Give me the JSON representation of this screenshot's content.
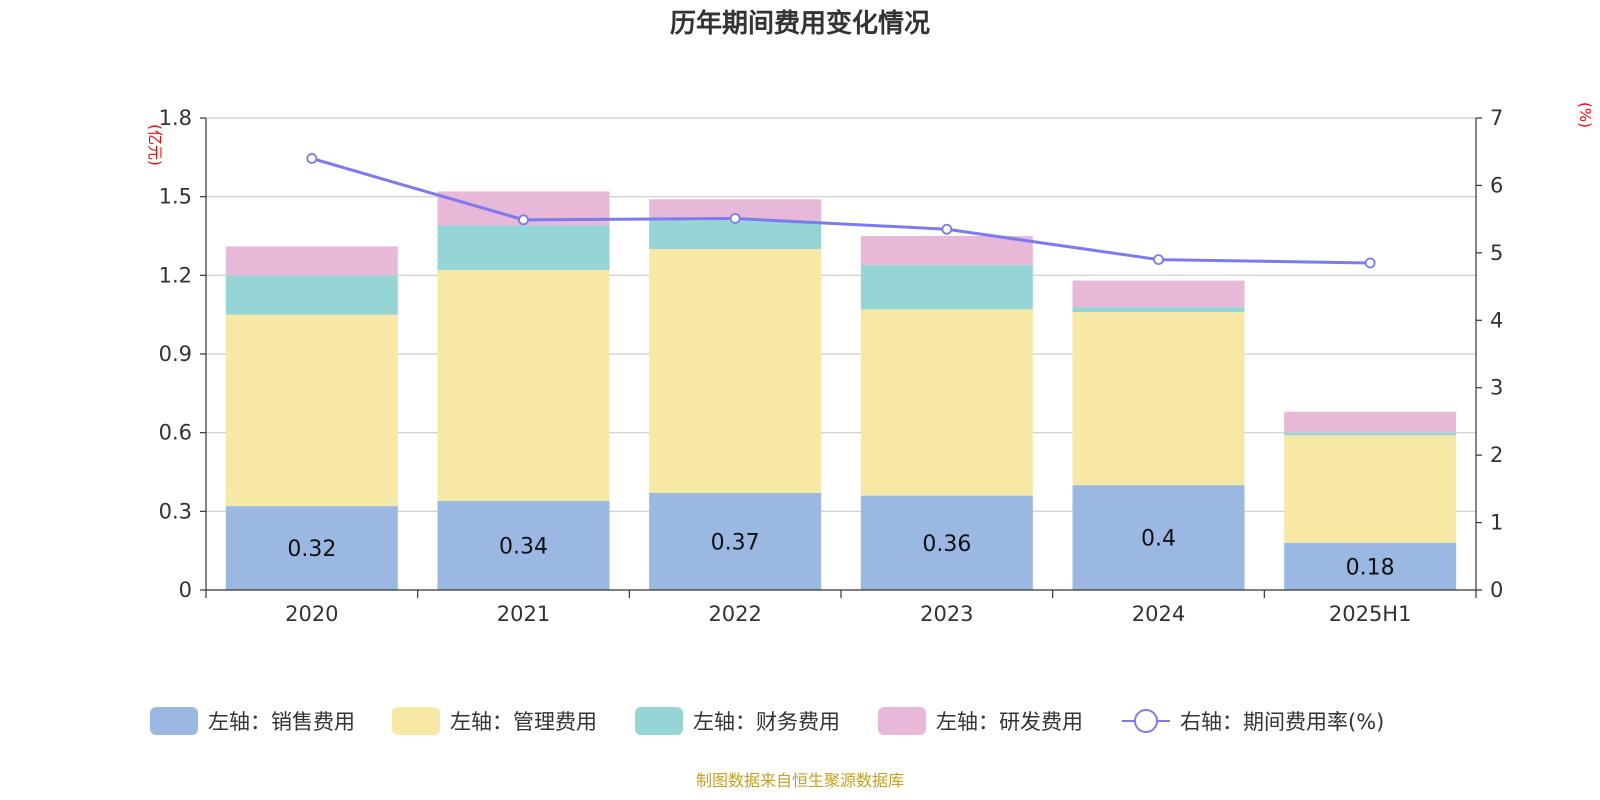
{
  "chart_data": {
    "type": "bar",
    "title": "历年期间费用变化情况",
    "categories": [
      "2020",
      "2021",
      "2022",
      "2023",
      "2024",
      "2025H1"
    ],
    "y_left": {
      "unit": "(亿元)",
      "range": [
        0,
        1.8
      ],
      "ticks": [
        "0",
        "0.3",
        "0.6",
        "0.9",
        "1.2",
        "1.5",
        "1.8"
      ]
    },
    "y_right": {
      "unit": "(%)",
      "range": [
        0,
        7
      ],
      "ticks": [
        "0",
        "1",
        "2",
        "3",
        "4",
        "5",
        "6",
        "7"
      ]
    },
    "grid": true,
    "legend_position": "bottom",
    "series": [
      {
        "name": "左轴：销售费用",
        "type": "bar",
        "axis": "left",
        "color": "#9bb8e3",
        "values": [
          0.32,
          0.34,
          0.37,
          0.36,
          0.4,
          0.18
        ],
        "labels": [
          "0.32",
          "0.34",
          "0.37",
          "0.36",
          "0.4",
          "0.18"
        ]
      },
      {
        "name": "左轴：管理费用",
        "type": "bar",
        "axis": "left",
        "color": "#f7e8a6",
        "values": [
          0.73,
          0.88,
          0.93,
          0.71,
          0.66,
          0.41
        ]
      },
      {
        "name": "左轴：财务费用",
        "type": "bar",
        "axis": "left",
        "color": "#96d5d6",
        "values": [
          0.15,
          0.17,
          0.11,
          0.17,
          0.02,
          0.01
        ]
      },
      {
        "name": "左轴：研发费用",
        "type": "bar",
        "axis": "left",
        "color": "#e8b8d8",
        "values": [
          0.11,
          0.13,
          0.08,
          0.11,
          0.1,
          0.08
        ]
      },
      {
        "name": "右轴：期间费用率(%)",
        "type": "line",
        "axis": "right",
        "color": "#7b7bef",
        "values": [
          6.4,
          5.49,
          5.51,
          5.35,
          4.9,
          4.85
        ]
      }
    ],
    "source": "制图数据来自恒生聚源数据库"
  }
}
